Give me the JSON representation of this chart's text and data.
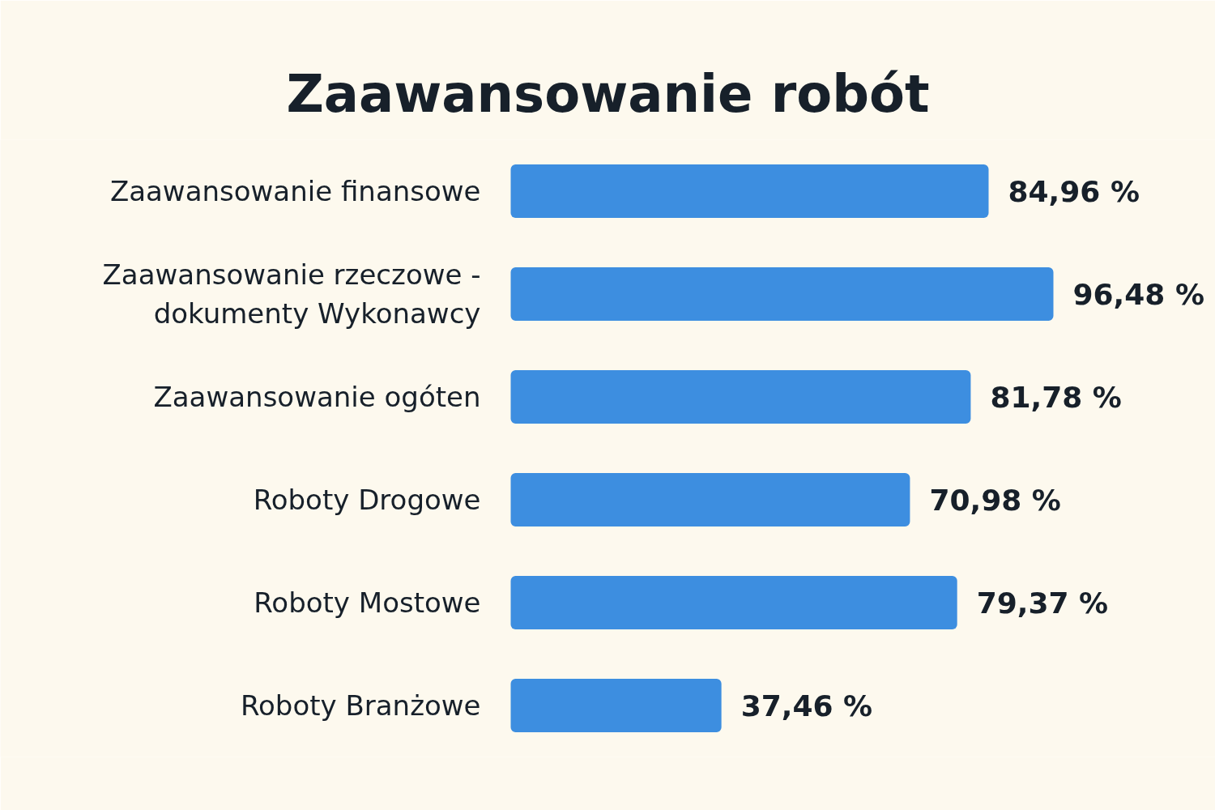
{
  "chart_data": {
    "type": "bar",
    "orientation": "horizontal",
    "title": "Zaawansowanie robót",
    "categories": [
      "Zaawansowanie finansowe",
      "Zaawansowanie rzeczowe - dokumenty Wykonawcy",
      "Zaawansowanie ogóten",
      "Roboty Drogowe",
      "Roboty Mostowe",
      "Roboty Branżowe"
    ],
    "values": [
      84.96,
      96.48,
      81.78,
      70.98,
      79.37,
      37.46
    ],
    "color": "#3d8ee0",
    "value_labels": [
      "84,96 %",
      "96,48 %",
      "81,78 %",
      "70,98 %",
      "79,37 %",
      "37,46 %"
    ]
  }
}
